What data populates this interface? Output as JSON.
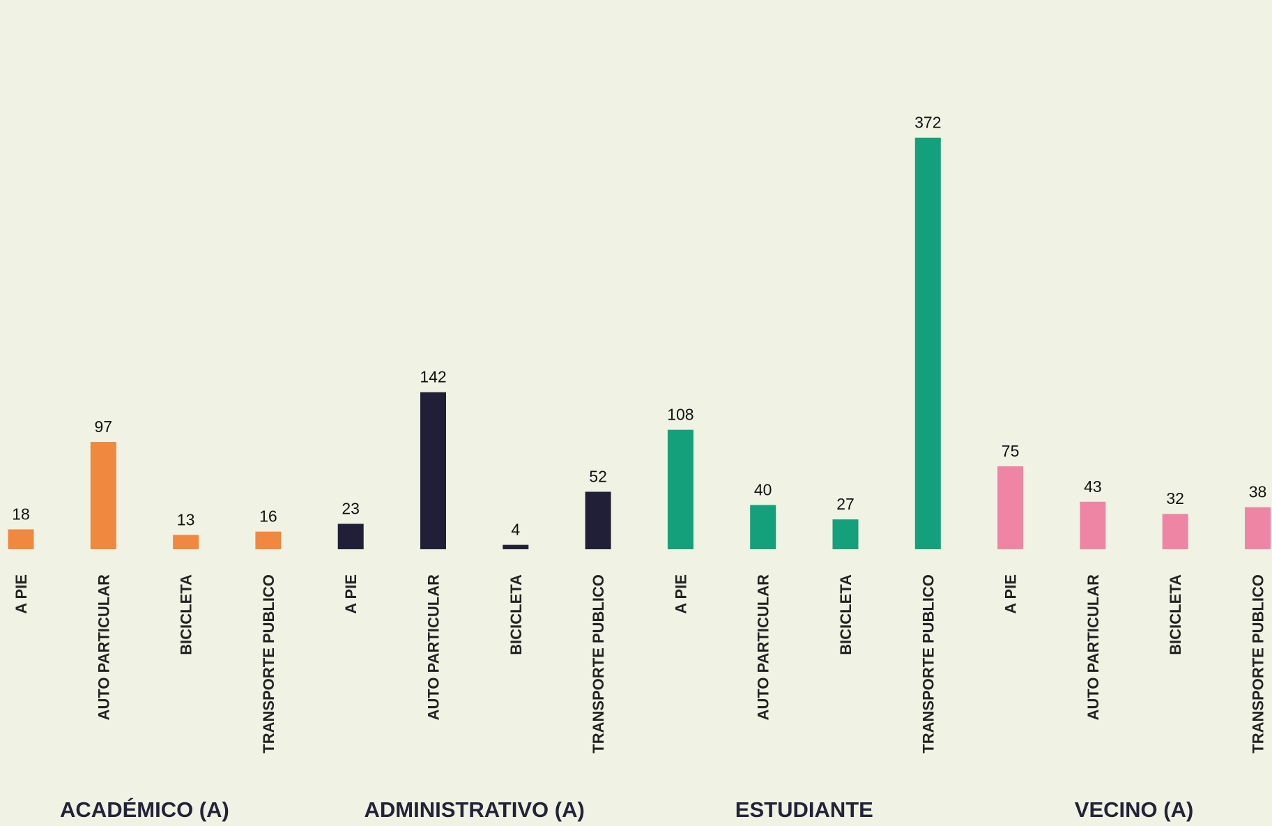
{
  "chart_data": {
    "type": "bar",
    "categories": [
      "A PIE",
      "AUTO PARTICULAR",
      "BICICLETA",
      "TRANSPORTE PUBLICO"
    ],
    "series": [
      {
        "name": "ACADÉMICO (A)",
        "color": "#f0883f",
        "values": [
          18,
          97,
          13,
          16
        ]
      },
      {
        "name": "ADMINISTRATIVO (A)",
        "color": "#211f38",
        "values": [
          23,
          142,
          4,
          52
        ]
      },
      {
        "name": "ESTUDIANTE",
        "color": "#14a07a",
        "values": [
          108,
          40,
          27,
          372
        ]
      },
      {
        "name": "VECINO (A)",
        "color": "#ee85a5",
        "values": [
          75,
          43,
          32,
          38
        ]
      }
    ]
  }
}
